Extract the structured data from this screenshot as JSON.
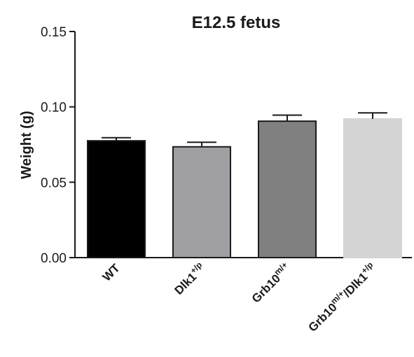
{
  "chart_data": {
    "type": "bar",
    "title": "E12.5 fetus",
    "ylabel": "Weight (g)",
    "xlabel": "",
    "ylim": [
      0,
      0.15
    ],
    "yticks": [
      "0.00",
      "0.05",
      "0.10",
      "0.15"
    ],
    "ytick_values": [
      0,
      0.05,
      0.1,
      0.15
    ],
    "grid": false,
    "categories": [
      {
        "base": "WT",
        "sup": ""
      },
      {
        "base": "Dlk1",
        "sup": "+/p"
      },
      {
        "base": "Grb10",
        "sup": "m/+"
      },
      {
        "base": "Grb10",
        "sup": "m/+",
        "base2": "/Dlk1",
        "sup2": "+/p"
      }
    ],
    "values": [
      0.0775,
      0.0735,
      0.0905,
      0.092
    ],
    "errors": [
      0.002,
      0.003,
      0.004,
      0.004
    ],
    "colors": [
      "#000000",
      "#a0a0a4",
      "#808080",
      "#d4d4d4"
    ]
  }
}
